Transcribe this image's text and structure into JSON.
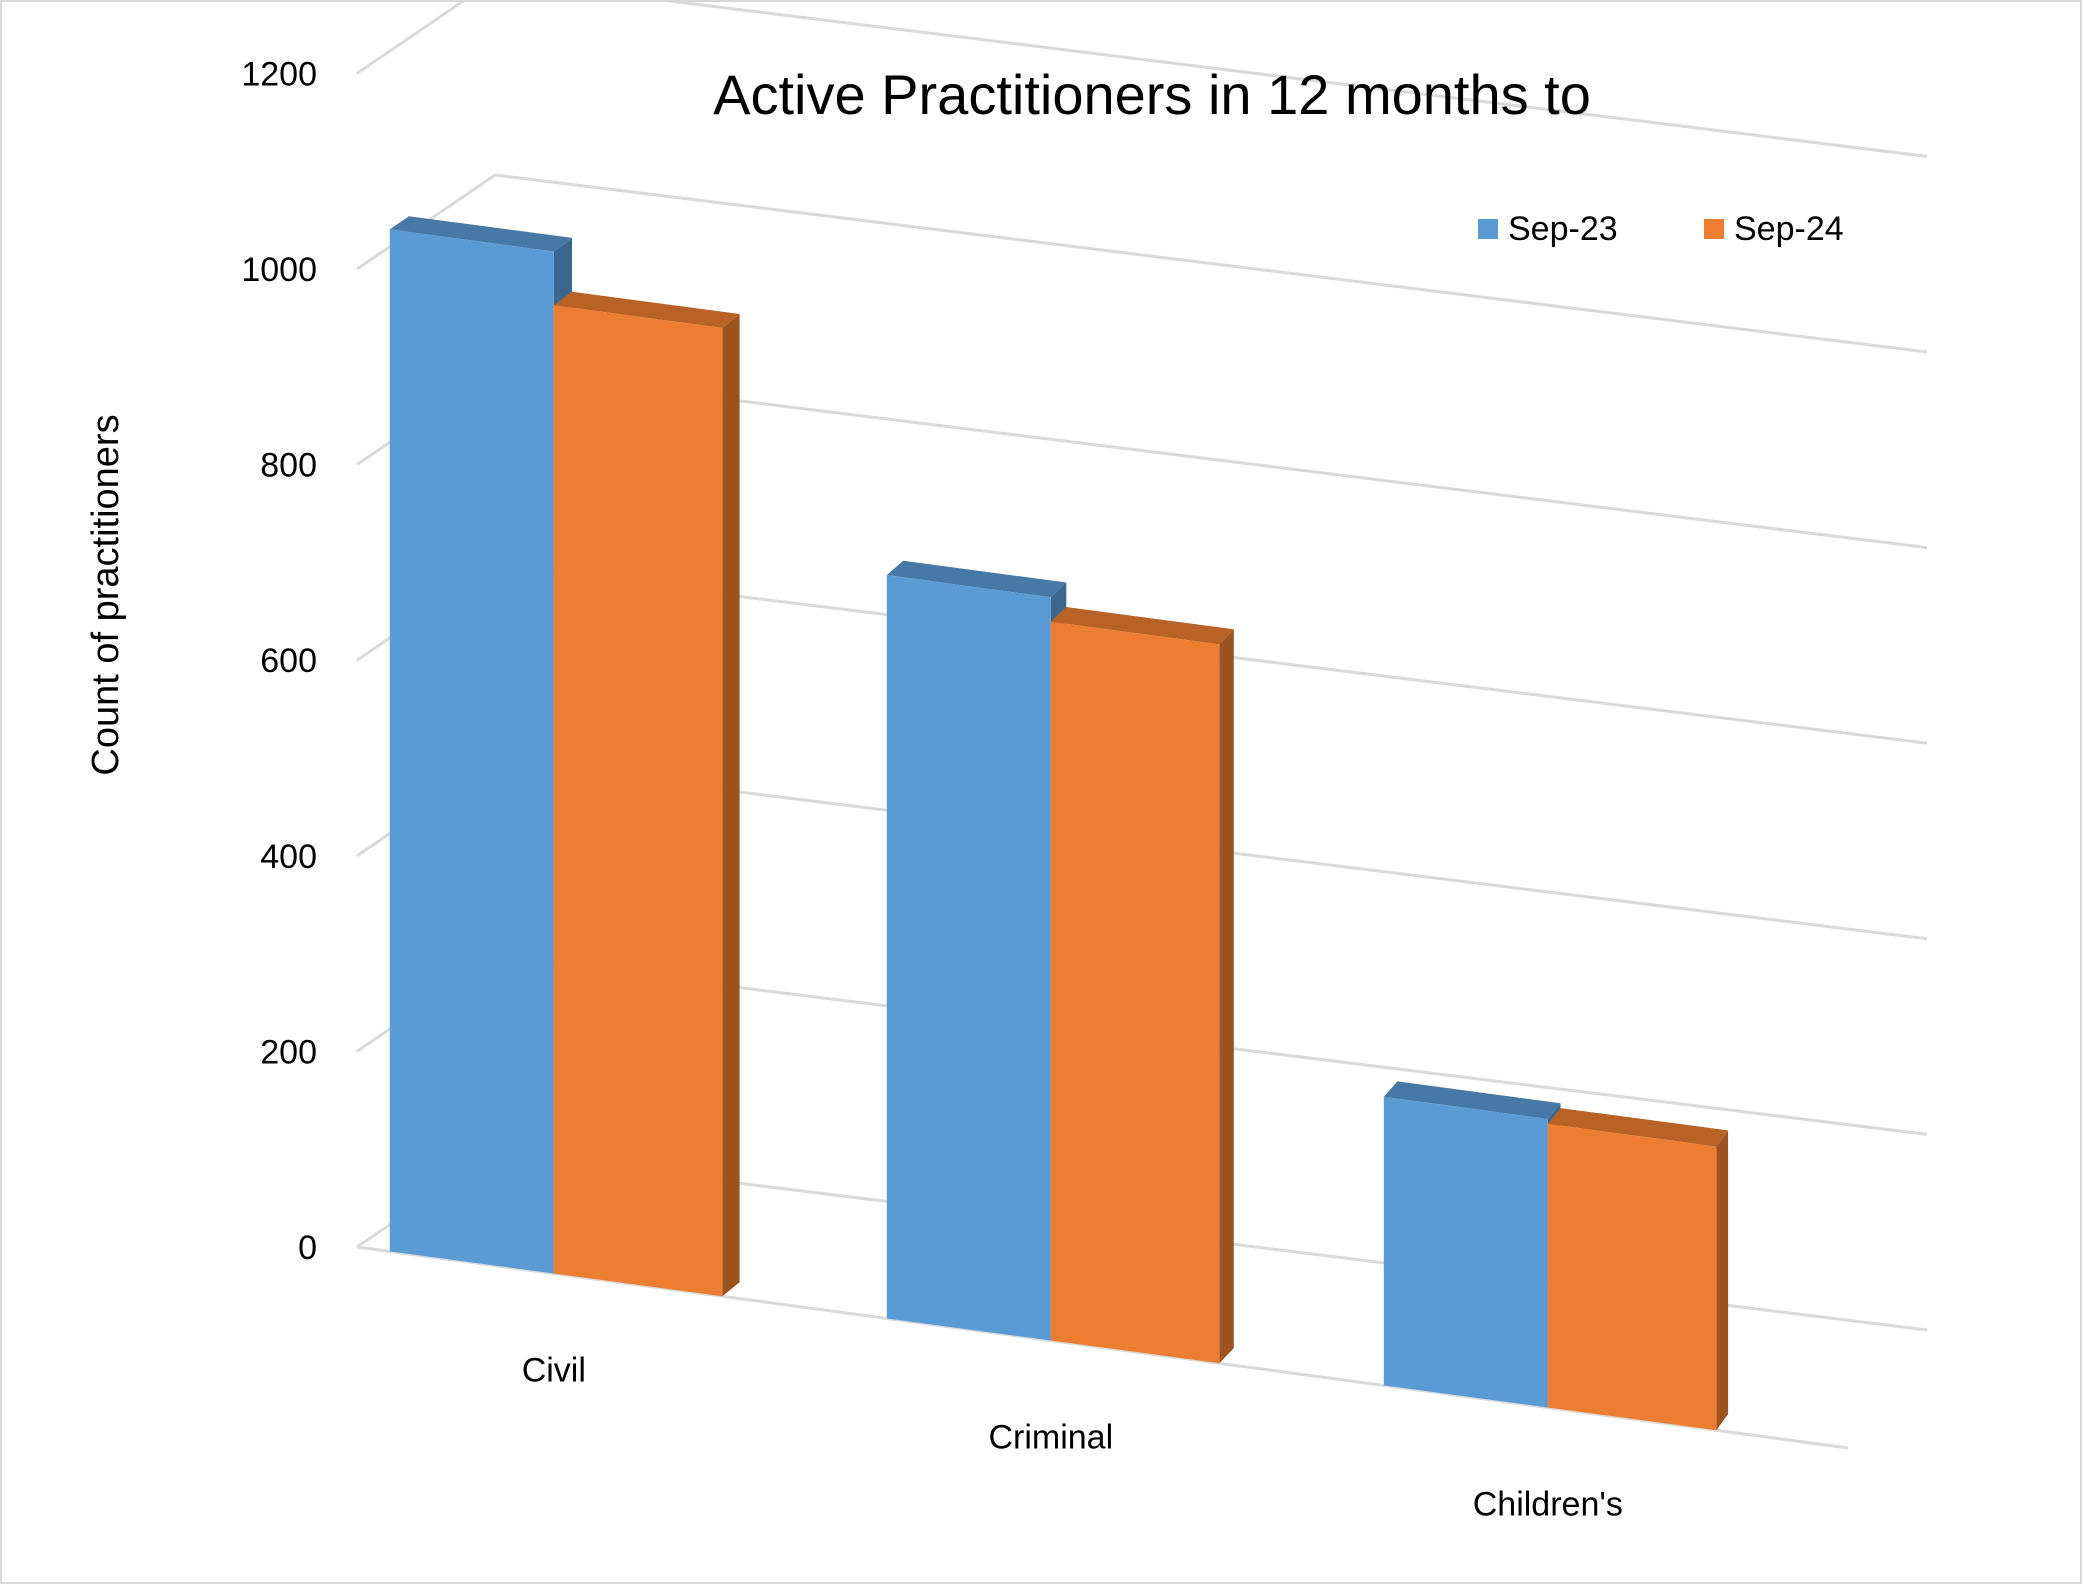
{
  "chart_data": {
    "type": "bar",
    "title": "Active Practitioners in 12 months to",
    "xlabel": "",
    "ylabel": "Count of practitioners",
    "ylim": [
      0,
      1200
    ],
    "yticks": [
      "0",
      "200",
      "400",
      "600",
      "800",
      "1000",
      "1200"
    ],
    "categories": [
      "Civil",
      "Criminal",
      "Children's"
    ],
    "series": [
      {
        "name": "Sep-23",
        "values": [
          1045,
          760,
          295
        ],
        "color": "#5b9bd5"
      },
      {
        "name": "Sep-24",
        "values": [
          990,
          735,
          290
        ],
        "color": "#ed7d31"
      }
    ],
    "grid": true,
    "legend_position": "top-right",
    "style": "3d-clustered-column"
  }
}
